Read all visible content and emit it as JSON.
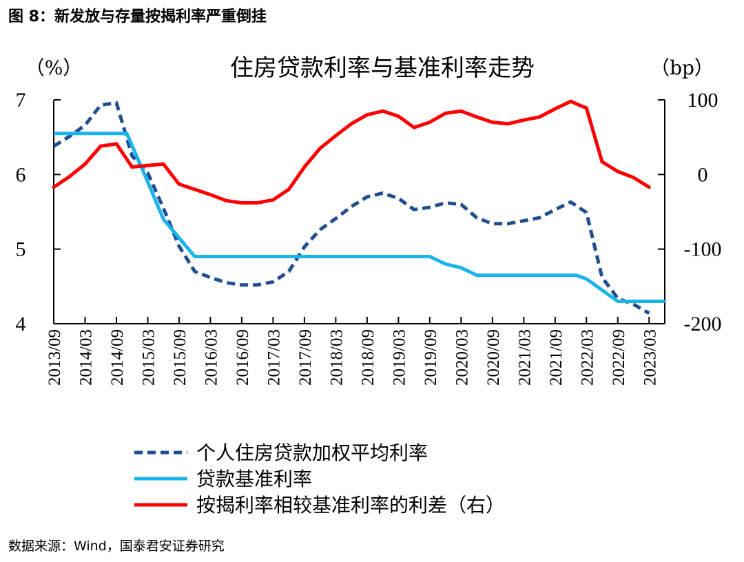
{
  "caption": "图 8：新发放与存量按揭利率严重倒挂",
  "source": "数据来源：Wind，国泰君安证券研究",
  "chart_data": {
    "type": "line",
    "title": "住房贷款利率与基准利率走势",
    "left_unit": "（%）",
    "right_unit": "（bp）",
    "left_axis": {
      "ylim": [
        4,
        7
      ],
      "ticks": [
        4,
        5,
        6,
        7
      ],
      "tick_labels": [
        "4",
        "5",
        "6",
        "7"
      ]
    },
    "right_axis": {
      "ylim": [
        -200,
        100
      ],
      "ticks": [
        -200,
        -100,
        0,
        100
      ],
      "tick_labels": [
        "-200",
        "-100",
        "0",
        "100"
      ]
    },
    "x_start": "2013-09",
    "x_end": "2023-06",
    "x_tick_labels": [
      "2013/09",
      "2014/03",
      "2014/09",
      "2015/03",
      "2015/09",
      "2016/03",
      "2016/09",
      "2017/03",
      "2017/09",
      "2018/03",
      "2018/09",
      "2019/03",
      "2019/09",
      "2020/03",
      "2020/09",
      "2021/03",
      "2021/09",
      "2022/03",
      "2022/09",
      "2023/03"
    ],
    "grid": false,
    "legend_position": "bottom",
    "series": [
      {
        "name": "个人住房贷款加权平均利率",
        "axis": "left",
        "color": "#1F4E91",
        "style": "dashed",
        "points": [
          [
            "2013-09",
            6.38
          ],
          [
            "2013-12",
            6.51
          ],
          [
            "2014-03",
            6.66
          ],
          [
            "2014-06",
            6.93
          ],
          [
            "2014-09",
            6.96
          ],
          [
            "2014-12",
            6.25
          ],
          [
            "2015-03",
            6.02
          ],
          [
            "2015-06",
            5.55
          ],
          [
            "2015-09",
            5.04
          ],
          [
            "2015-12",
            4.7
          ],
          [
            "2016-03",
            4.62
          ],
          [
            "2016-06",
            4.55
          ],
          [
            "2016-09",
            4.52
          ],
          [
            "2016-12",
            4.52
          ],
          [
            "2017-03",
            4.56
          ],
          [
            "2017-06",
            4.7
          ],
          [
            "2017-09",
            5.03
          ],
          [
            "2017-12",
            5.26
          ],
          [
            "2018-03",
            5.41
          ],
          [
            "2018-06",
            5.57
          ],
          [
            "2018-09",
            5.7
          ],
          [
            "2018-12",
            5.75
          ],
          [
            "2019-03",
            5.68
          ],
          [
            "2019-06",
            5.53
          ],
          [
            "2019-09",
            5.56
          ],
          [
            "2019-12",
            5.62
          ],
          [
            "2020-03",
            5.6
          ],
          [
            "2020-06",
            5.42
          ],
          [
            "2020-09",
            5.34
          ],
          [
            "2020-12",
            5.34
          ],
          [
            "2021-03",
            5.38
          ],
          [
            "2021-06",
            5.42
          ],
          [
            "2021-09",
            5.53
          ],
          [
            "2021-12",
            5.63
          ],
          [
            "2022-03",
            5.49
          ],
          [
            "2022-06",
            4.62
          ],
          [
            "2022-09",
            4.34
          ],
          [
            "2022-12",
            4.26
          ],
          [
            "2023-03",
            4.14
          ]
        ]
      },
      {
        "name": "贷款基准利率",
        "axis": "left",
        "color": "#19B4EB",
        "style": "solid",
        "points": [
          [
            "2013-09",
            6.55
          ],
          [
            "2014-11",
            6.55
          ],
          [
            "2015-03",
            5.9
          ],
          [
            "2015-06",
            5.4
          ],
          [
            "2015-12",
            4.9
          ],
          [
            "2019-09",
            4.9
          ],
          [
            "2019-12",
            4.8
          ],
          [
            "2020-03",
            4.75
          ],
          [
            "2020-06",
            4.65
          ],
          [
            "2022-01",
            4.65
          ],
          [
            "2022-03",
            4.6
          ],
          [
            "2022-09",
            4.3
          ],
          [
            "2023-06",
            4.3
          ]
        ]
      },
      {
        "name": "按揭利率相较基准利率的利差（右）",
        "axis": "right",
        "color": "#FF0000",
        "style": "solid",
        "points": [
          [
            "2013-09",
            -17
          ],
          [
            "2013-12",
            -3
          ],
          [
            "2014-03",
            14
          ],
          [
            "2014-06",
            38
          ],
          [
            "2014-09",
            41
          ],
          [
            "2014-12",
            10
          ],
          [
            "2015-03",
            12
          ],
          [
            "2015-06",
            14
          ],
          [
            "2015-09",
            -13
          ],
          [
            "2015-12",
            -20
          ],
          [
            "2016-03",
            -27
          ],
          [
            "2016-06",
            -35
          ],
          [
            "2016-09",
            -38
          ],
          [
            "2016-12",
            -38
          ],
          [
            "2017-03",
            -34
          ],
          [
            "2017-06",
            -20
          ],
          [
            "2017-09",
            10
          ],
          [
            "2017-12",
            35
          ],
          [
            "2018-03",
            52
          ],
          [
            "2018-06",
            68
          ],
          [
            "2018-09",
            80
          ],
          [
            "2018-12",
            85
          ],
          [
            "2019-03",
            78
          ],
          [
            "2019-06",
            63
          ],
          [
            "2019-09",
            70
          ],
          [
            "2019-12",
            82
          ],
          [
            "2020-03",
            85
          ],
          [
            "2020-06",
            77
          ],
          [
            "2020-09",
            70
          ],
          [
            "2020-12",
            68
          ],
          [
            "2021-03",
            73
          ],
          [
            "2021-06",
            77
          ],
          [
            "2021-09",
            88
          ],
          [
            "2021-12",
            98
          ],
          [
            "2022-03",
            89
          ],
          [
            "2022-06",
            17
          ],
          [
            "2022-09",
            4
          ],
          [
            "2022-12",
            -4
          ],
          [
            "2023-03",
            -17
          ]
        ]
      }
    ]
  }
}
